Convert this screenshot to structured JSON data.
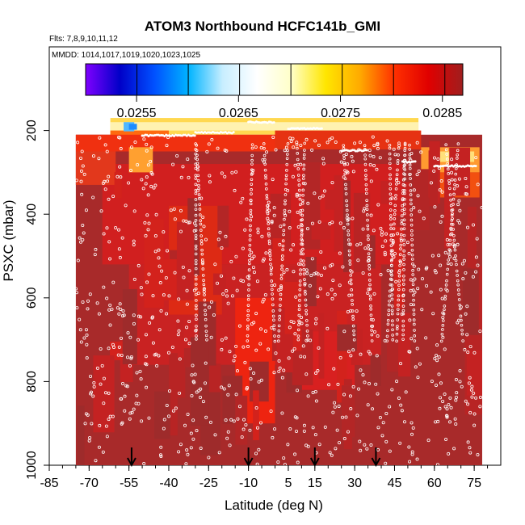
{
  "chart_data": {
    "type": "heatmap",
    "title": "ATOM3 Northbound HCFC141b_GMI",
    "subtitle_flights": "Flts: 7,8,9,10,11,12",
    "subtitle_dates": "MMDD: 1014,1017,1019,1020,1023,1025",
    "xlabel": "Latitude (deg N)",
    "ylabel": "PSXC (mbar)",
    "xlim": [
      -85,
      85
    ],
    "ylim": [
      1000,
      0
    ],
    "x_ticks": [
      -85,
      -70,
      -55,
      -40,
      -25,
      -10,
      5,
      15,
      30,
      45,
      60,
      75
    ],
    "y_ticks": [
      200,
      400,
      600,
      800,
      1000
    ],
    "colorbar": {
      "range": [
        0.025,
        0.0287
      ],
      "ticks": [
        0.0255,
        0.0265,
        0.0275,
        0.0285
      ],
      "tick_labels": [
        "0.0255",
        "0.0265",
        "0.0275",
        "0.0285"
      ],
      "colors": [
        "#7f00ff",
        "#0000c8",
        "#0050ff",
        "#00b4ff",
        "#c8eeff",
        "#ffffff",
        "#ffffc8",
        "#ffe600",
        "#ffaa00",
        "#ff3000",
        "#e00000",
        "#a01e1e"
      ]
    },
    "arrow_latitudes": [
      -54,
      -10,
      15,
      38
    ],
    "colors": {
      "background_field": "#a82a2a",
      "high_field": "#d11f1f",
      "peak_field": "#ee2410",
      "sample_points": "#ffffff"
    }
  }
}
